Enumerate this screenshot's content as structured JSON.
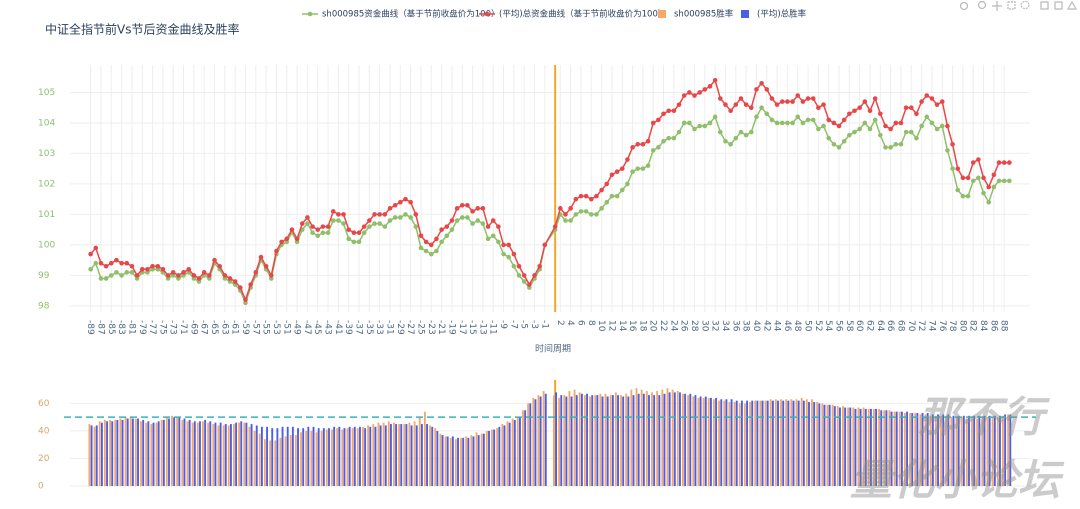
{
  "chart_data": [
    {
      "type": "line",
      "title": "中证全指节前Vs节后资金曲线及胜率",
      "xlabel": "时间周期",
      "x": [
        -89,
        -88,
        -87,
        -86,
        -85,
        -84,
        -83,
        -82,
        -81,
        -80,
        -79,
        -78,
        -77,
        -76,
        -75,
        -74,
        -73,
        -72,
        -71,
        -70,
        -69,
        -68,
        -67,
        -66,
        -65,
        -64,
        -63,
        -62,
        -61,
        -60,
        -59,
        -58,
        -57,
        -56,
        -55,
        -54,
        -53,
        -52,
        -51,
        -50,
        -49,
        -48,
        -47,
        -46,
        -45,
        -44,
        -43,
        -42,
        -41,
        -40,
        -39,
        -38,
        -37,
        -36,
        -35,
        -34,
        -33,
        -32,
        -31,
        -30,
        -29,
        -28,
        -27,
        -26,
        -25,
        -24,
        -23,
        -22,
        -21,
        -20,
        -19,
        -18,
        -17,
        -16,
        -15,
        -14,
        -13,
        -12,
        -11,
        -10,
        -9,
        -8,
        -7,
        -6,
        -5,
        -4,
        -3,
        -2,
        -1,
        1,
        2,
        3,
        4,
        5,
        6,
        7,
        8,
        9,
        10,
        11,
        12,
        13,
        14,
        15,
        16,
        17,
        18,
        19,
        20,
        21,
        22,
        23,
        24,
        25,
        26,
        27,
        28,
        29,
        30,
        31,
        32,
        33,
        34,
        35,
        36,
        37,
        38,
        39,
        40,
        41,
        42,
        43,
        44,
        45,
        46,
        47,
        48,
        49,
        50,
        51,
        52,
        53,
        54,
        55,
        56,
        57,
        58,
        59,
        60,
        61,
        62,
        63,
        64,
        65,
        66,
        67,
        68,
        69,
        70,
        71,
        72,
        73,
        74,
        75,
        76,
        77,
        78,
        79,
        80,
        81,
        82,
        83,
        84,
        85,
        86,
        87,
        88,
        89
      ],
      "series": [
        {
          "name": "sh000985资金曲线（基于节前收盘价为100）",
          "color": "#8fbf6a",
          "values": [
            99.2,
            99.4,
            98.9,
            98.9,
            99.0,
            99.1,
            99.0,
            99.1,
            99.1,
            98.9,
            99.1,
            99.1,
            99.2,
            99.2,
            99.1,
            98.9,
            99.0,
            98.9,
            99.0,
            99.1,
            98.9,
            98.8,
            99.0,
            98.9,
            99.4,
            99.2,
            98.9,
            98.8,
            98.7,
            98.5,
            98.1,
            98.6,
            99.0,
            99.5,
            99.2,
            98.9,
            99.7,
            100.0,
            100.1,
            100.4,
            100.1,
            100.5,
            100.7,
            100.4,
            100.3,
            100.4,
            100.4,
            100.8,
            100.8,
            100.7,
            100.2,
            100.1,
            100.1,
            100.4,
            100.6,
            100.7,
            100.7,
            100.6,
            100.8,
            100.9,
            100.9,
            101.0,
            100.9,
            100.6,
            99.9,
            99.8,
            99.7,
            99.8,
            100.1,
            100.3,
            100.5,
            100.8,
            100.9,
            100.9,
            100.7,
            100.8,
            100.7,
            100.2,
            100.3,
            100.1,
            99.7,
            99.6,
            99.3,
            99.0,
            98.8,
            98.6,
            98.9,
            99.2,
            100.0,
            100.5,
            101.0,
            100.8,
            100.8,
            101.0,
            101.1,
            101.1,
            101.0,
            101.0,
            101.2,
            101.4,
            101.6,
            101.6,
            101.8,
            102.0,
            102.4,
            102.5,
            102.5,
            102.6,
            103.1,
            103.2,
            103.4,
            103.5,
            103.5,
            103.7,
            104.0,
            104.0,
            103.8,
            103.9,
            103.9,
            104.0,
            104.2,
            103.7,
            103.4,
            103.3,
            103.5,
            103.7,
            103.6,
            103.7,
            104.2,
            104.5,
            104.3,
            104.1,
            104.0,
            104.0,
            104.0,
            104.0,
            104.2,
            104.0,
            104.1,
            104.1,
            103.8,
            103.9,
            103.5,
            103.3,
            103.2,
            103.4,
            103.6,
            103.7,
            103.8,
            104.0,
            103.8,
            104.1,
            103.6,
            103.2,
            103.2,
            103.3,
            103.3,
            103.7,
            103.7,
            103.5,
            103.9,
            104.2,
            104.0,
            103.8,
            103.9,
            103.1,
            102.5,
            101.8,
            101.6,
            101.6,
            102.1,
            102.2,
            101.7,
            101.4,
            101.9,
            102.1,
            102.1,
            102.1
          ]
        },
        {
          "name": "(平均)总资金曲线（基于节前收盘价为100）",
          "color": "#e8474a",
          "values": [
            99.7,
            99.9,
            99.4,
            99.3,
            99.4,
            99.5,
            99.4,
            99.4,
            99.3,
            99.0,
            99.2,
            99.2,
            99.3,
            99.3,
            99.2,
            99.0,
            99.1,
            99.0,
            99.1,
            99.2,
            99.0,
            98.9,
            99.1,
            99.0,
            99.5,
            99.3,
            99.0,
            98.9,
            98.8,
            98.6,
            98.2,
            98.7,
            99.1,
            99.6,
            99.3,
            99.0,
            99.8,
            100.1,
            100.2,
            100.5,
            100.2,
            100.7,
            100.9,
            100.6,
            100.5,
            100.6,
            100.6,
            101.1,
            101.0,
            101.0,
            100.5,
            100.4,
            100.4,
            100.6,
            100.8,
            101.0,
            101.0,
            101.0,
            101.2,
            101.3,
            101.4,
            101.5,
            101.4,
            101.0,
            100.3,
            100.1,
            100.0,
            100.2,
            100.5,
            100.6,
            100.8,
            101.2,
            101.3,
            101.3,
            101.1,
            101.2,
            101.2,
            100.6,
            100.8,
            100.6,
            100.0,
            100.0,
            99.7,
            99.3,
            99.0,
            98.7,
            99.0,
            99.3,
            100.0,
            100.6,
            101.2,
            101.0,
            101.2,
            101.5,
            101.6,
            101.6,
            101.5,
            101.6,
            101.8,
            102.0,
            102.3,
            102.4,
            102.5,
            102.8,
            103.2,
            103.3,
            103.3,
            103.4,
            104.0,
            104.1,
            104.3,
            104.4,
            104.4,
            104.6,
            104.9,
            105.0,
            104.9,
            105.0,
            105.1,
            105.2,
            105.4,
            104.8,
            104.6,
            104.4,
            104.6,
            104.8,
            104.6,
            104.5,
            105.1,
            105.3,
            105.1,
            104.8,
            104.6,
            104.7,
            104.7,
            104.7,
            104.9,
            104.7,
            104.8,
            104.8,
            104.5,
            104.6,
            104.1,
            104.0,
            103.9,
            104.1,
            104.3,
            104.4,
            104.5,
            104.7,
            104.4,
            104.8,
            104.3,
            103.9,
            103.8,
            104.0,
            104.0,
            104.5,
            104.5,
            104.3,
            104.7,
            104.9,
            104.8,
            104.6,
            104.7,
            103.9,
            103.3,
            102.5,
            102.2,
            102.2,
            102.7,
            102.8,
            102.2,
            101.9,
            102.3,
            102.7,
            102.7,
            102.7
          ]
        }
      ],
      "xlim": [
        -93,
        93
      ],
      "ylim": [
        97.8,
        105.9
      ],
      "xticks": [
        -89,
        -87,
        -85,
        -83,
        -81,
        -79,
        -77,
        -75,
        -73,
        -71,
        -69,
        -67,
        -65,
        -63,
        -61,
        -59,
        -57,
        -55,
        -53,
        -51,
        -49,
        -47,
        -45,
        -43,
        -41,
        -39,
        -37,
        -35,
        -33,
        -31,
        -29,
        -27,
        -25,
        -23,
        -21,
        -19,
        -17,
        -15,
        -13,
        -11,
        -9,
        -7,
        -5,
        -3,
        -1,
        2,
        4,
        6,
        8,
        10,
        12,
        14,
        16,
        18,
        20,
        22,
        24,
        26,
        28,
        30,
        32,
        34,
        36,
        38,
        40,
        42,
        44,
        46,
        48,
        50,
        52,
        54,
        56,
        58,
        60,
        62,
        64,
        66,
        68,
        70,
        72,
        74,
        76,
        78,
        80,
        82,
        84,
        86,
        88
      ],
      "yticks": [
        98,
        99,
        100,
        101,
        102,
        103,
        104,
        105
      ],
      "grid": true,
      "vline": 1
    },
    {
      "type": "bar",
      "x": [
        -89,
        -88,
        -87,
        -86,
        -85,
        -84,
        -83,
        -82,
        -81,
        -80,
        -79,
        -78,
        -77,
        -76,
        -75,
        -74,
        -73,
        -72,
        -71,
        -70,
        -69,
        -68,
        -67,
        -66,
        -65,
        -64,
        -63,
        -62,
        -61,
        -60,
        -59,
        -58,
        -57,
        -56,
        -55,
        -54,
        -53,
        -52,
        -51,
        -50,
        -49,
        -48,
        -47,
        -46,
        -45,
        -44,
        -43,
        -42,
        -41,
        -40,
        -39,
        -38,
        -37,
        -36,
        -35,
        -34,
        -33,
        -32,
        -31,
        -30,
        -29,
        -28,
        -27,
        -26,
        -25,
        -24,
        -23,
        -22,
        -21,
        -20,
        -19,
        -18,
        -17,
        -16,
        -15,
        -14,
        -13,
        -12,
        -11,
        -10,
        -9,
        -8,
        -7,
        -6,
        -5,
        -4,
        -3,
        -2,
        -1,
        1,
        2,
        3,
        4,
        5,
        6,
        7,
        8,
        9,
        10,
        11,
        12,
        13,
        14,
        15,
        16,
        17,
        18,
        19,
        20,
        21,
        22,
        23,
        24,
        25,
        26,
        27,
        28,
        29,
        30,
        31,
        32,
        33,
        34,
        35,
        36,
        37,
        38,
        39,
        40,
        41,
        42,
        43,
        44,
        45,
        46,
        47,
        48,
        49,
        50,
        51,
        52,
        53,
        54,
        55,
        56,
        57,
        58,
        59,
        60,
        61,
        62,
        63,
        64,
        65,
        66,
        67,
        68,
        69,
        70,
        71,
        72,
        73,
        74,
        75,
        76,
        77,
        78,
        79,
        80,
        81,
        82,
        83,
        84,
        85,
        86,
        87,
        88,
        89
      ],
      "series": [
        {
          "name": "sh000985胜率",
          "color": "#f4a96a",
          "values": [
            45,
            43,
            47,
            48,
            48,
            48,
            49,
            50,
            50,
            49,
            47,
            46,
            45,
            46,
            48,
            50,
            51,
            50,
            48,
            47,
            46,
            46,
            47,
            46,
            45,
            44,
            44,
            44,
            45,
            46,
            46,
            43,
            40,
            38,
            34,
            33,
            33,
            35,
            36,
            37,
            37,
            39,
            40,
            40,
            39,
            40,
            41,
            41,
            42,
            41,
            42,
            42,
            42,
            43,
            44,
            45,
            46,
            46,
            47,
            46,
            45,
            45,
            46,
            47,
            50,
            54,
            44,
            42,
            38,
            36,
            35,
            34,
            35,
            36,
            37,
            39,
            38,
            40,
            41,
            42,
            45,
            47,
            49,
            50,
            55,
            60,
            64,
            66,
            69,
            66,
            64,
            66,
            69,
            70,
            68,
            66,
            65,
            66,
            67,
            67,
            66,
            68,
            66,
            67,
            70,
            71,
            70,
            69,
            68,
            69,
            70,
            71,
            70,
            69,
            67,
            66,
            65,
            64,
            64,
            64,
            63,
            62,
            62,
            61,
            61,
            60,
            60,
            61,
            62,
            62,
            62,
            63,
            63,
            63,
            63,
            63,
            63,
            64,
            63,
            63,
            61,
            60,
            59,
            59,
            58,
            58,
            57,
            57,
            57,
            57,
            56,
            56,
            56,
            55,
            55,
            54,
            54,
            53,
            53,
            53,
            52,
            52,
            51,
            51,
            51,
            51,
            50,
            50,
            50,
            49,
            49,
            49,
            50,
            50,
            50,
            50,
            51,
            52
          ]
        },
        {
          "name": "(平均)总胜率",
          "color": "#4a5fe6",
          "values": [
            44,
            44,
            46,
            47,
            47,
            48,
            48,
            49,
            49,
            49,
            48,
            47,
            46,
            47,
            48,
            49,
            50,
            50,
            49,
            48,
            47,
            47,
            48,
            47,
            46,
            46,
            45,
            45,
            46,
            47,
            46,
            45,
            44,
            43,
            43,
            42,
            42,
            43,
            43,
            43,
            42,
            42,
            43,
            43,
            42,
            42,
            42,
            43,
            43,
            42,
            43,
            43,
            43,
            42,
            43,
            43,
            44,
            44,
            45,
            45,
            45,
            45,
            44,
            44,
            45,
            45,
            43,
            40,
            37,
            36,
            36,
            35,
            35,
            35,
            36,
            37,
            38,
            40,
            41,
            43,
            44,
            46,
            48,
            50,
            55,
            60,
            63,
            65,
            67,
            68,
            66,
            65,
            65,
            66,
            67,
            67,
            66,
            66,
            65,
            65,
            66,
            66,
            65,
            65,
            66,
            67,
            67,
            66,
            66,
            66,
            67,
            68,
            68,
            68,
            67,
            67,
            66,
            65,
            65,
            64,
            64,
            63,
            63,
            63,
            62,
            62,
            62,
            62,
            62,
            62,
            62,
            62,
            62,
            62,
            62,
            62,
            62,
            62,
            61,
            61,
            60,
            59,
            59,
            58,
            57,
            57,
            57,
            56,
            56,
            56,
            56,
            56,
            55,
            55,
            54,
            54,
            54,
            54,
            53,
            53,
            53,
            53,
            52,
            52,
            52,
            52,
            51,
            51,
            51,
            51,
            51,
            51,
            51,
            51,
            51,
            51,
            52,
            52
          ]
        }
      ],
      "xlim": [
        -93,
        93
      ],
      "ylim": [
        0,
        77
      ],
      "yticks": [
        0,
        20,
        40,
        60
      ],
      "grid": true,
      "hline": 50,
      "vline": 1
    }
  ],
  "watermark": [
    "那不行",
    "量化小论坛"
  ]
}
